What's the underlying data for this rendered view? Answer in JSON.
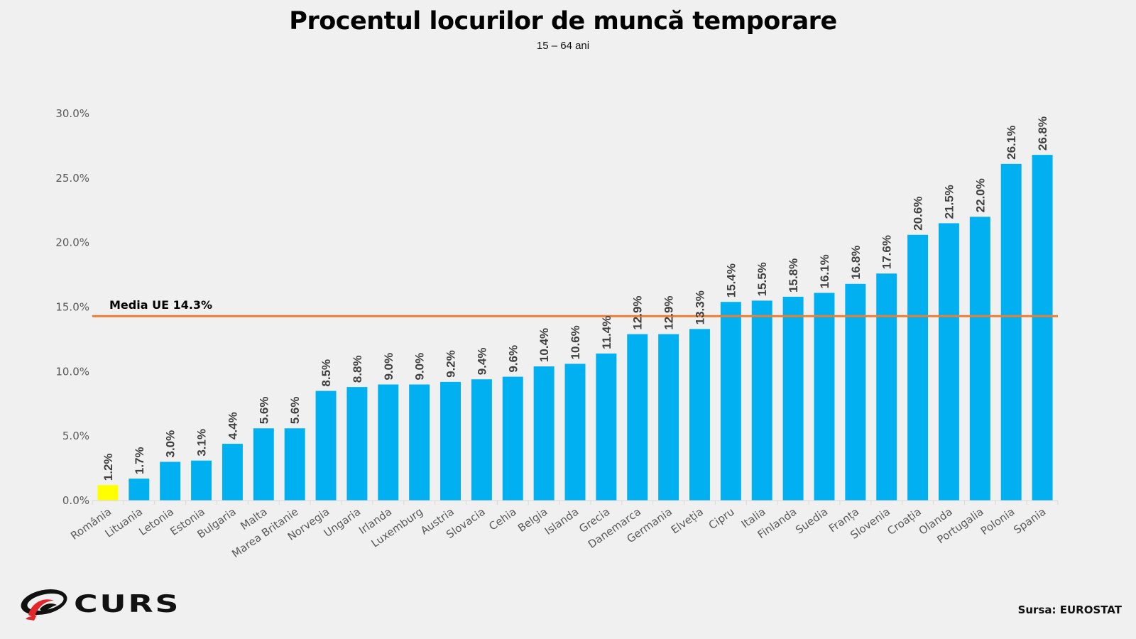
{
  "chart_data": {
    "type": "bar",
    "title": "Procentul locurilor de muncă temporare",
    "subtitle": "15 – 64 ani",
    "xlabel": "",
    "ylabel": "",
    "ylim": [
      0,
      30
    ],
    "yticks": [
      0,
      5,
      10,
      15,
      20,
      25,
      30
    ],
    "ytick_labels": [
      "0.0%",
      "5.0%",
      "10.0%",
      "15.0%",
      "20.0%",
      "25.0%",
      "30.0%"
    ],
    "grid": false,
    "categories": [
      "România",
      "Lituania",
      "Letonia",
      "Estonia",
      "Bulgaria",
      "Malta",
      "Marea Britanie",
      "Norvegia",
      "Ungaria",
      "Irlanda",
      "Luxemburg",
      "Austria",
      "Slovacia",
      "Cehia",
      "Belgia",
      "Islanda",
      "Grecia",
      "Danemarca",
      "Germania",
      "Elveția",
      "Cipru",
      "Italia",
      "Finlanda",
      "Suedia",
      "Franța",
      "Slovenia",
      "Croația",
      "Olanda",
      "Portugalia",
      "Polonia",
      "Spania"
    ],
    "values": [
      1.2,
      1.7,
      3.0,
      3.1,
      4.4,
      5.6,
      5.6,
      8.5,
      8.8,
      9.0,
      9.0,
      9.2,
      9.4,
      9.6,
      10.4,
      10.6,
      11.4,
      12.9,
      12.9,
      13.3,
      15.4,
      15.5,
      15.8,
      16.1,
      16.8,
      17.6,
      20.6,
      21.5,
      22.0,
      26.1,
      26.8
    ],
    "value_labels": [
      "1.2%",
      "1.7%",
      "3.0%",
      "3.1%",
      "4.4%",
      "5.6%",
      "5.6%",
      "8.5%",
      "8.8%",
      "9.0%",
      "9.0%",
      "9.2%",
      "9.4%",
      "9.6%",
      "10.4%",
      "10.6%",
      "11.4%",
      "12.9%",
      "12.9%",
      "13.3%",
      "15.4%",
      "15.5%",
      "15.8%",
      "16.1%",
      "16.8%",
      "17.6%",
      "20.6%",
      "21.5%",
      "22.0%",
      "26.1%",
      "26.8%"
    ],
    "highlight_index": 0,
    "reference_line": {
      "value": 14.3,
      "label": "Media UE 14.3%"
    },
    "colors": {
      "bar": "#00b0f0",
      "highlight": "#ffff00",
      "reference": "#ed7d31",
      "axis": "#d9d9d9"
    }
  },
  "footer": {
    "logo_text": "CURS",
    "source": "Sursa: EUROSTAT"
  }
}
